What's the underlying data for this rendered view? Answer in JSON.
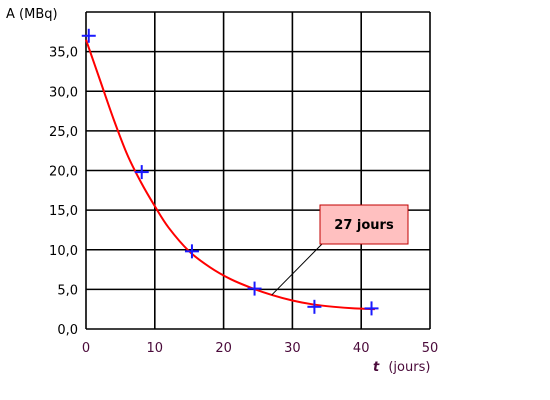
{
  "chart_data": {
    "type": "scatter",
    "title": "",
    "ylabel": "A (MBq)",
    "xlabel_var": "t",
    "xlabel_unit": "(jours)",
    "xlim": [
      0,
      50
    ],
    "ylim": [
      0,
      40
    ],
    "grid": true,
    "x_ticks": [
      0,
      10,
      20,
      30,
      40,
      50
    ],
    "x_tick_labels": [
      "0",
      "10",
      "20",
      "30",
      "40",
      "50"
    ],
    "y_ticks": [
      0,
      5,
      10,
      15,
      20,
      25,
      30,
      35
    ],
    "y_tick_labels": [
      "0,0",
      "5,0",
      "10,0",
      "15,0",
      "20,0",
      "25,0",
      "30,0",
      "35,0"
    ],
    "points": {
      "x": [
        0.4,
        8.1,
        15.4,
        24.5,
        33.2,
        41.5
      ],
      "y": [
        37.0,
        19.8,
        9.8,
        5.1,
        2.8,
        2.6
      ]
    },
    "curve": {
      "x": [
        0,
        2,
        4,
        6,
        8,
        10,
        12,
        15,
        18,
        21,
        24,
        27,
        30,
        33,
        36,
        39,
        42
      ],
      "y": [
        36.5,
        31.5,
        26.5,
        22.0,
        18.5,
        15.5,
        12.8,
        9.8,
        7.8,
        6.3,
        5.2,
        4.3,
        3.6,
        3.1,
        2.8,
        2.6,
        2.5
      ]
    },
    "annotation": {
      "text": "27 jours",
      "points_to": [
        27,
        4.3
      ]
    },
    "colors": {
      "curve": "#ff0000",
      "markers": "#1a1aff",
      "grid": "#000000",
      "annotation_fill": "#ffc0c0",
      "annotation_stroke": "#c00000"
    }
  }
}
